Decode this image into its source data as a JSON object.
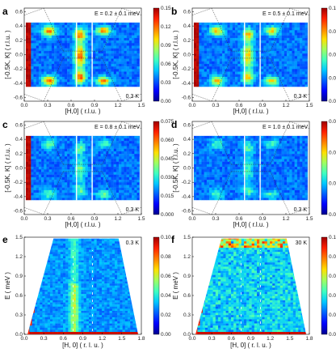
{
  "colormap": [
    "#00008f",
    "#0000ff",
    "#0060ff",
    "#00c8ff",
    "#40ffc0",
    "#a0ff60",
    "#ffe000",
    "#ff8000",
    "#ff2000",
    "#a00000"
  ],
  "chart_data": [
    {
      "id": "a",
      "type": "heatmap",
      "panel_label": "a",
      "xlabel": "[H,0] ( r.l.u. )",
      "ylabel": "[-0.5K, K] ( r.l.u. )",
      "xlim": [
        0.0,
        1.5
      ],
      "ylim": [
        -0.65,
        0.65
      ],
      "xticks": [
        "0.0",
        "0.3",
        "0.6",
        "0.9",
        "1.2",
        "1.5"
      ],
      "yticks": [
        "0.6",
        "0.4",
        "0.2",
        "0.0",
        "-0.2",
        "-0.4",
        "-0.6"
      ],
      "annotation": "E = 0.2 ± 0.1 meV",
      "temperature": "0.3 K",
      "colorbar": {
        "range": [
          0,
          0.15
        ],
        "ticks": [
          "0.15",
          "0.12",
          "0.09",
          "0.06",
          "0.03",
          "0.00"
        ]
      }
    },
    {
      "id": "b",
      "type": "heatmap",
      "panel_label": "b",
      "xlabel": "[H,0] ( r.l.u. )",
      "ylabel": "[-0.5K, K] ( r.l.u. )",
      "xlim": [
        0.0,
        1.5
      ],
      "ylim": [
        -0.65,
        0.65
      ],
      "xticks": [
        "0.0",
        "0.3",
        "0.6",
        "0.9",
        "1.2",
        "1.5"
      ],
      "yticks": [
        "0.6",
        "0.4",
        "0.2",
        "0.0",
        "-0.2",
        "-0.4",
        "-0.6"
      ],
      "annotation": "E = 0.5 ± 0.1 meV",
      "temperature": "0.3 K",
      "colorbar": {
        "range": [
          0,
          0.12
        ],
        "ticks": [
          "0.12",
          "0.09",
          "0.06",
          "0.03",
          "0.00"
        ]
      }
    },
    {
      "id": "c",
      "type": "heatmap",
      "panel_label": "c",
      "xlabel": "[H,0] ( r.l.u. )",
      "ylabel": "[-0.5K, K] ( r.l.u. )",
      "xlim": [
        0.0,
        1.5
      ],
      "ylim": [
        -0.65,
        0.65
      ],
      "xticks": [
        "0.0",
        "0.3",
        "0.6",
        "0.9",
        "1.2",
        "1.5"
      ],
      "yticks": [
        "0.6",
        "0.4",
        "0.2",
        "0.0",
        "-0.2",
        "-0.4",
        "-0.6"
      ],
      "annotation": "E = 0.8 ± 0.1 meV",
      "temperature": "0.3 K",
      "colorbar": {
        "range": [
          0,
          0.075
        ],
        "ticks": [
          "0.075",
          "0.060",
          "0.045",
          "0.030",
          "0.015",
          "0.000"
        ]
      }
    },
    {
      "id": "d",
      "type": "heatmap",
      "panel_label": "d",
      "xlabel": "[H,0] ( r.l.u. )",
      "ylabel": "[-0.5K, K] ( r.l.u. )",
      "xlim": [
        0.0,
        1.5
      ],
      "ylim": [
        -0.65,
        0.65
      ],
      "xticks": [
        "0.0",
        "0.3",
        "0.6",
        "0.9",
        "1.2",
        "1.5"
      ],
      "yticks": [
        "0.6",
        "0.4",
        "0.2",
        "0.0",
        "-0.2",
        "-0.4",
        "-0.6"
      ],
      "annotation": "E = 1.0 ± 0.1 meV",
      "temperature": "0.3 K",
      "colorbar": {
        "range": [
          0,
          0.06
        ],
        "ticks": [
          "0.06",
          "0.04",
          "0.02",
          "0.00"
        ]
      }
    },
    {
      "id": "e",
      "type": "heatmap",
      "panel_label": "e",
      "xlabel": "[H, 0] ( r. l. u. )",
      "ylabel": "E ( meV )",
      "xlim": [
        0.0,
        1.8
      ],
      "ylim": [
        0.0,
        1.5
      ],
      "xticks": [
        "0.0",
        "0.3",
        "0.6",
        "0.9",
        "1.2",
        "1.5",
        "1.8"
      ],
      "yticks": [
        "1.5",
        "1.2",
        "0.9",
        "0.6",
        "0.3",
        "0.0"
      ],
      "temperature": "0.3 K",
      "colorbar": {
        "range": [
          0,
          0.1
        ],
        "ticks": [
          "0.10",
          "0.08",
          "0.06",
          "0.04",
          "0.02",
          "0.00"
        ]
      }
    },
    {
      "id": "f",
      "type": "heatmap",
      "panel_label": "f",
      "xlabel": "[H, 0] ( r. l. u. )",
      "ylabel": "E ( meV )",
      "xlim": [
        0.0,
        1.8
      ],
      "ylim": [
        0.0,
        1.5
      ],
      "xticks": [
        "0.0",
        "0.3",
        "0.6",
        "0.9",
        "1.2",
        "1.5",
        "1.8"
      ],
      "yticks": [
        "1.5",
        "1.2",
        "0.9",
        "0.6",
        "0.3",
        "0.0"
      ],
      "temperature": "30 K",
      "colorbar": {
        "range": [
          0,
          0.1
        ],
        "ticks": [
          "0.10",
          "0.08",
          "0.06",
          "0.04",
          "0.02",
          "0.00"
        ]
      }
    }
  ]
}
